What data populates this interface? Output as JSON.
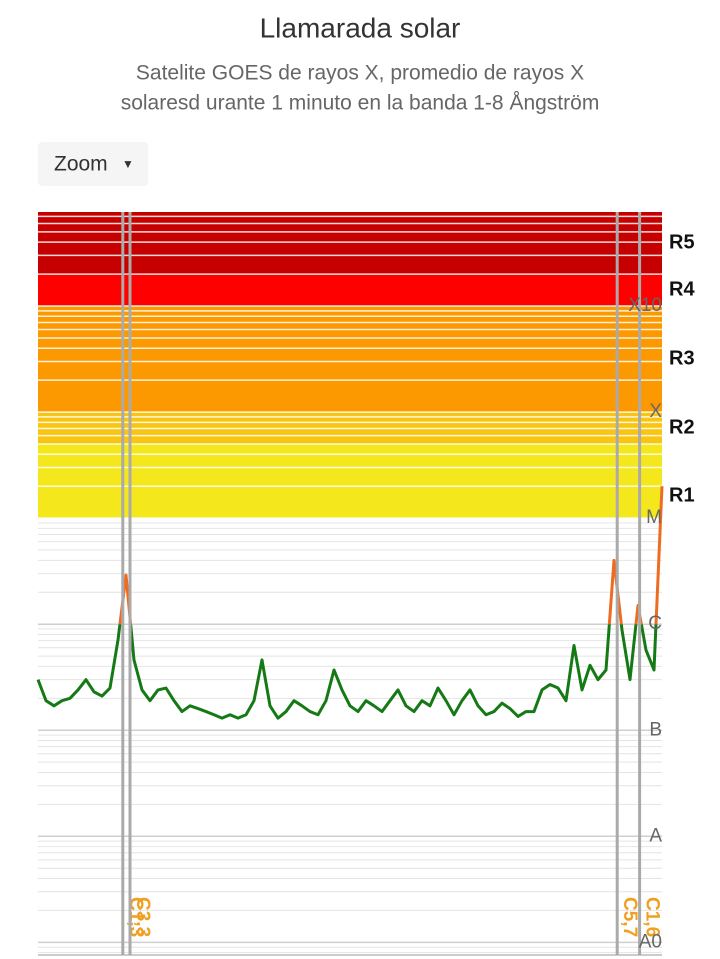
{
  "chart_data": {
    "type": "line",
    "title": "Llamarada solar",
    "subtitle": [
      "Satelite GOES de rayos X, promedio de rayos X",
      "solaresd urante 1 minuto en la banda 1-8 Ångström"
    ],
    "zoom_button": "Zoom",
    "log_scale": true,
    "grid": true,
    "ylim": [
      7.6e-10,
      0.0077
    ],
    "yticks": [
      {
        "value": 1e-09,
        "label": "A0"
      },
      {
        "value": 1e-08,
        "label": "A"
      },
      {
        "value": 1e-07,
        "label": "B"
      },
      {
        "value": 1e-06,
        "label": "C"
      },
      {
        "value": 1e-05,
        "label": "M"
      },
      {
        "value": 0.0001,
        "label": "X"
      },
      {
        "value": 0.001,
        "label": "X10"
      }
    ],
    "scale_bands": [
      {
        "label": "R1",
        "from": 1e-05,
        "color": "#f4e81c"
      },
      {
        "label": "R2",
        "from": 5e-05,
        "color": "#f9c513"
      },
      {
        "label": "R3",
        "from": 0.0001,
        "color": "#fd9900"
      },
      {
        "label": "R4",
        "from": 0.001,
        "color": "#ff0000"
      },
      {
        "label": "R5",
        "from": 0.002,
        "color": "#c60000"
      }
    ],
    "series": [
      {
        "color": "#157a15",
        "high_color": "#ee6c22",
        "threshold": 1e-06,
        "values": [
          3e-07,
          1.9e-07,
          1.7e-07,
          1.9e-07,
          2e-07,
          2.4e-07,
          3e-07,
          2.3e-07,
          2.1e-07,
          2.5e-07,
          7.1e-07,
          2.9e-06,
          4.6e-07,
          2.4e-07,
          1.9e-07,
          2.4e-07,
          2.5e-07,
          1.9e-07,
          1.5e-07,
          1.7e-07,
          1.6e-07,
          1.5e-07,
          1.4e-07,
          1.3e-07,
          1.4e-07,
          1.3e-07,
          1.4e-07,
          1.9e-07,
          4.6e-07,
          1.7e-07,
          1.3e-07,
          1.5e-07,
          1.9e-07,
          1.7e-07,
          1.5e-07,
          1.4e-07,
          1.9e-07,
          3.7e-07,
          2.4e-07,
          1.7e-07,
          1.5e-07,
          1.9e-07,
          1.7e-07,
          1.5e-07,
          1.9e-07,
          2.4e-07,
          1.7e-07,
          1.5e-07,
          1.9e-07,
          1.7e-07,
          2.5e-07,
          1.9e-07,
          1.4e-07,
          1.9e-07,
          2.4e-07,
          1.7e-07,
          1.4e-07,
          1.5e-07,
          1.8e-07,
          1.6e-07,
          1.35e-07,
          1.5e-07,
          1.5e-07,
          2.4e-07,
          2.7e-07,
          2.5e-07,
          1.9e-07,
          6.3e-07,
          2.4e-07,
          4.1e-07,
          3e-07,
          3.7e-07,
          4e-06,
          8.8e-07,
          3e-07,
          1.5e-06,
          5.7e-07,
          3.7e-07,
          2e-05
        ]
      }
    ],
    "flares": [
      {
        "x": 10.6,
        "label": "C1,3"
      },
      {
        "x": 11.5,
        "label": "C3,3"
      },
      {
        "x": 72.4,
        "label": "C5,7"
      },
      {
        "x": 75.2,
        "label": "C1,6"
      }
    ]
  }
}
